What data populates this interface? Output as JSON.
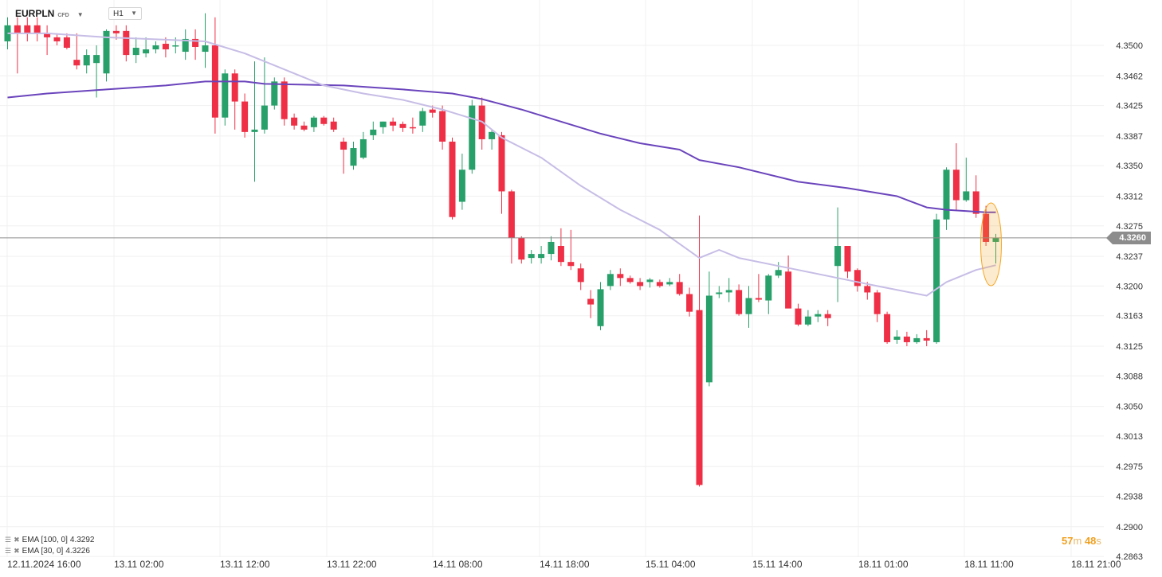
{
  "header": {
    "symbol": "EURPLN",
    "instrument_type": "CFD",
    "timeframe": "H1"
  },
  "indicators": [
    {
      "label": "EMA [100,  0]",
      "value": "4.3292",
      "color": "#6a44bc"
    },
    {
      "label": "EMA [30,  0]",
      "value": "4.3226",
      "color": "#c7bde6"
    }
  ],
  "current_price_label": "4.3260",
  "candle_timer": {
    "minutes": "57",
    "minutes_unit": "m",
    "seconds": "48",
    "seconds_unit": "s"
  },
  "colors": {
    "up": "#27a06a",
    "down": "#ef2f45",
    "grid": "#f0f0f0",
    "price_line": "#8c8c8c",
    "highlight": "#f5a623"
  },
  "chart_data": {
    "type": "candlestick",
    "symbol": "EURPLN",
    "timeframe": "H1",
    "y_ticks": [
      "4.3500",
      "4.3462",
      "4.3425",
      "4.3387",
      "4.3350",
      "4.3312",
      "4.3275",
      "4.3237",
      "4.3200",
      "4.3163",
      "4.3125",
      "4.3088",
      "4.3050",
      "4.3013",
      "4.2975",
      "4.2938",
      "4.2900",
      "4.2863"
    ],
    "ylim": [
      4.2863,
      4.353
    ],
    "x_ticks": [
      "12.11.2024  16:00",
      "13.11  02:00",
      "13.11  12:00",
      "13.11  22:00",
      "14.11  08:00",
      "14.11  18:00",
      "15.11  04:00",
      "15.11  14:00",
      "18.11  01:00",
      "18.11  11:00",
      "18.11  21:00"
    ],
    "grid": true,
    "current_price": 4.326,
    "candles": [
      [
        4.3505,
        4.3535,
        4.3495,
        4.3525
      ],
      [
        4.3525,
        4.3535,
        4.3465,
        4.3515
      ],
      [
        4.3525,
        4.3535,
        4.3505,
        4.3515
      ],
      [
        4.3525,
        4.3535,
        4.3505,
        4.3515
      ],
      [
        4.3515,
        4.3525,
        4.3488,
        4.351
      ],
      [
        4.351,
        4.3515,
        4.35,
        4.3505
      ],
      [
        4.351,
        4.3515,
        4.3495,
        4.3497
      ],
      [
        4.3482,
        4.3515,
        4.347,
        4.3475
      ],
      [
        4.3475,
        4.3495,
        4.3465,
        4.3488
      ],
      [
        4.3478,
        4.35,
        4.3435,
        4.3488
      ],
      [
        4.3465,
        4.352,
        4.3455,
        4.3518
      ],
      [
        4.3518,
        4.3525,
        4.3507,
        4.3515
      ],
      [
        4.3518,
        4.3525,
        4.348,
        4.3488
      ],
      [
        4.3488,
        4.351,
        4.3478,
        4.3497
      ],
      [
        4.349,
        4.351,
        4.3485,
        4.3495
      ],
      [
        4.3495,
        4.3505,
        4.349,
        4.35
      ],
      [
        4.3502,
        4.351,
        4.3485,
        4.3495
      ],
      [
        4.35,
        4.351,
        4.349,
        4.35
      ],
      [
        4.3492,
        4.352,
        4.3482,
        4.3508
      ],
      [
        4.3508,
        4.352,
        4.3482,
        4.3498
      ],
      [
        4.3492,
        4.354,
        4.3472,
        4.35
      ],
      [
        4.35,
        4.3535,
        4.339,
        4.341
      ],
      [
        4.341,
        4.347,
        4.34,
        4.3465
      ],
      [
        4.3465,
        4.347,
        4.3395,
        4.343
      ],
      [
        4.343,
        4.344,
        4.3385,
        4.3392
      ],
      [
        4.3392,
        4.348,
        4.333,
        4.3395
      ],
      [
        4.3395,
        4.3485,
        4.339,
        4.3425
      ],
      [
        4.3425,
        4.346,
        4.342,
        4.3455
      ],
      [
        4.3455,
        4.346,
        4.34,
        4.3408
      ],
      [
        4.341,
        4.3415,
        4.3395,
        4.34
      ],
      [
        4.34,
        4.3405,
        4.3393,
        4.3395
      ],
      [
        4.3398,
        4.3412,
        4.3392,
        4.341
      ],
      [
        4.341,
        4.3412,
        4.34,
        4.3402
      ],
      [
        4.3405,
        4.341,
        4.3392,
        4.3395
      ],
      [
        4.338,
        4.3385,
        4.334,
        4.337
      ],
      [
        4.335,
        4.338,
        4.3345,
        4.3372
      ],
      [
        4.336,
        4.3392,
        4.3358,
        4.3383
      ],
      [
        4.3388,
        4.3405,
        4.3382,
        4.3395
      ],
      [
        4.3398,
        4.3405,
        4.339,
        4.3405
      ],
      [
        4.3405,
        4.341,
        4.3393,
        4.34
      ],
      [
        4.3402,
        4.3405,
        4.3392,
        4.3397
      ],
      [
        4.3398,
        4.341,
        4.339,
        4.3397
      ],
      [
        4.34,
        4.3422,
        4.3392,
        4.3418
      ],
      [
        4.342,
        4.3425,
        4.341,
        4.3416
      ],
      [
        4.3418,
        4.3425,
        4.337,
        4.338
      ],
      [
        4.338,
        4.3385,
        4.3283,
        4.3286
      ],
      [
        4.3305,
        4.3365,
        4.3295,
        4.3345
      ],
      [
        4.3345,
        4.3432,
        4.334,
        4.3425
      ],
      [
        4.3425,
        4.3435,
        4.337,
        4.3383
      ],
      [
        4.3383,
        4.3395,
        4.337,
        4.3392
      ],
      [
        4.3388,
        4.3392,
        4.329,
        4.3318
      ],
      [
        4.3318,
        4.332,
        4.3228,
        4.326
      ],
      [
        4.326,
        4.3262,
        4.3228,
        4.3233
      ],
      [
        4.3235,
        4.3245,
        4.3228,
        4.324
      ],
      [
        4.3235,
        4.325,
        4.3228,
        4.324
      ],
      [
        4.324,
        4.3262,
        4.3232,
        4.3255
      ],
      [
        4.325,
        4.3272,
        4.3225,
        4.323
      ],
      [
        4.323,
        4.327,
        4.322,
        4.3225
      ],
      [
        4.3222,
        4.3228,
        4.3195,
        4.3205
      ],
      [
        4.3184,
        4.3195,
        4.316,
        4.3177
      ],
      [
        4.315,
        4.3205,
        4.3145,
        4.3196
      ],
      [
        4.32,
        4.322,
        4.3195,
        4.3215
      ],
      [
        4.3215,
        4.3222,
        4.32,
        4.321
      ],
      [
        4.321,
        4.3213,
        4.3203,
        4.3205
      ],
      [
        4.3205,
        4.321,
        4.3195,
        4.32
      ],
      [
        4.3205,
        4.321,
        4.3198,
        4.3208
      ],
      [
        4.3205,
        4.3208,
        4.3198,
        4.32
      ],
      [
        4.3202,
        4.321,
        4.32,
        4.3205
      ],
      [
        4.3205,
        4.3215,
        4.3188,
        4.319
      ],
      [
        4.319,
        4.3198,
        4.3162,
        4.3168
      ],
      [
        4.317,
        4.3288,
        4.295,
        4.2952
      ],
      [
        4.308,
        4.3218,
        4.3075,
        4.3188
      ],
      [
        4.319,
        4.32,
        4.3185,
        4.3192
      ],
      [
        4.3192,
        4.321,
        4.318,
        4.3195
      ],
      [
        4.3195,
        4.3202,
        4.3163,
        4.3165
      ],
      [
        4.3165,
        4.32,
        4.3148,
        4.3185
      ],
      [
        4.3185,
        4.3215,
        4.318,
        4.3183
      ],
      [
        4.3182,
        4.3215,
        4.3165,
        4.3213
      ],
      [
        4.3213,
        4.323,
        4.321,
        4.322
      ],
      [
        4.3218,
        4.3238,
        4.3178,
        4.3172
      ],
      [
        4.3172,
        4.3178,
        4.315,
        4.3152
      ],
      [
        4.3152,
        4.317,
        4.315,
        4.3162
      ],
      [
        4.3162,
        4.317,
        4.3155,
        4.3165
      ],
      [
        4.3165,
        4.317,
        4.315,
        4.316
      ],
      [
        4.3225,
        4.3298,
        4.318,
        4.325
      ],
      [
        4.325,
        4.325,
        4.321,
        4.3218
      ],
      [
        4.322,
        4.3222,
        4.3193,
        4.32
      ],
      [
        4.32,
        4.3205,
        4.3183,
        4.3192
      ],
      [
        4.3192,
        4.3195,
        4.3155,
        4.3165
      ],
      [
        4.3165,
        4.3168,
        4.3128,
        4.313
      ],
      [
        4.3133,
        4.3145,
        4.3128,
        4.3137
      ],
      [
        4.3137,
        4.3143,
        4.3125,
        4.313
      ],
      [
        4.313,
        4.314,
        4.3128,
        4.3135
      ],
      [
        4.3135,
        4.3145,
        4.3125,
        4.3132
      ],
      [
        4.313,
        4.329,
        4.3128,
        4.3283
      ],
      [
        4.3283,
        4.3348,
        4.327,
        4.3345
      ],
      [
        4.3345,
        4.3378,
        4.3295,
        4.3307
      ],
      [
        4.3307,
        4.336,
        4.3305,
        4.3318
      ],
      [
        4.3318,
        4.3338,
        4.3285,
        4.329
      ],
      [
        4.329,
        4.33,
        4.325,
        4.3255
      ],
      [
        4.3255,
        4.3265,
        4.3228,
        4.326
      ]
    ],
    "series": [
      {
        "name": "EMA [100,  0]",
        "color": "#6a44bc",
        "points": [
          [
            0,
            4.3435
          ],
          [
            4,
            4.344
          ],
          [
            10,
            4.3445
          ],
          [
            16,
            4.345
          ],
          [
            20,
            4.3455
          ],
          [
            24,
            4.3455
          ],
          [
            26,
            4.3452
          ],
          [
            34,
            4.345
          ],
          [
            40,
            4.3445
          ],
          [
            45,
            4.344
          ],
          [
            48,
            4.3433
          ],
          [
            52,
            4.342
          ],
          [
            56,
            4.3405
          ],
          [
            60,
            4.339
          ],
          [
            64,
            4.3378
          ],
          [
            68,
            4.337
          ],
          [
            70,
            4.3357
          ],
          [
            74,
            4.3348
          ],
          [
            80,
            4.333
          ],
          [
            85,
            4.3322
          ],
          [
            90,
            4.3312
          ],
          [
            93,
            4.3298
          ],
          [
            95,
            4.3295
          ],
          [
            99,
            4.3292
          ],
          [
            100,
            4.3292
          ]
        ]
      },
      {
        "name": "EMA [30,  0]",
        "color": "#c7bde6",
        "points": [
          [
            0,
            4.3515
          ],
          [
            4,
            4.3515
          ],
          [
            10,
            4.351
          ],
          [
            16,
            4.3507
          ],
          [
            20,
            4.3505
          ],
          [
            24,
            4.349
          ],
          [
            28,
            4.347
          ],
          [
            32,
            4.345
          ],
          [
            36,
            4.344
          ],
          [
            40,
            4.3432
          ],
          [
            44,
            4.342
          ],
          [
            48,
            4.3405
          ],
          [
            50,
            4.3385
          ],
          [
            54,
            4.336
          ],
          [
            58,
            4.3325
          ],
          [
            62,
            4.3295
          ],
          [
            66,
            4.327
          ],
          [
            70,
            4.3235
          ],
          [
            72,
            4.3245
          ],
          [
            74,
            4.3235
          ],
          [
            78,
            4.3225
          ],
          [
            80,
            4.322
          ],
          [
            84,
            4.321
          ],
          [
            88,
            4.32
          ],
          [
            93,
            4.3188
          ],
          [
            95,
            4.3205
          ],
          [
            98,
            4.322
          ],
          [
            100,
            4.3226
          ]
        ]
      }
    ]
  }
}
